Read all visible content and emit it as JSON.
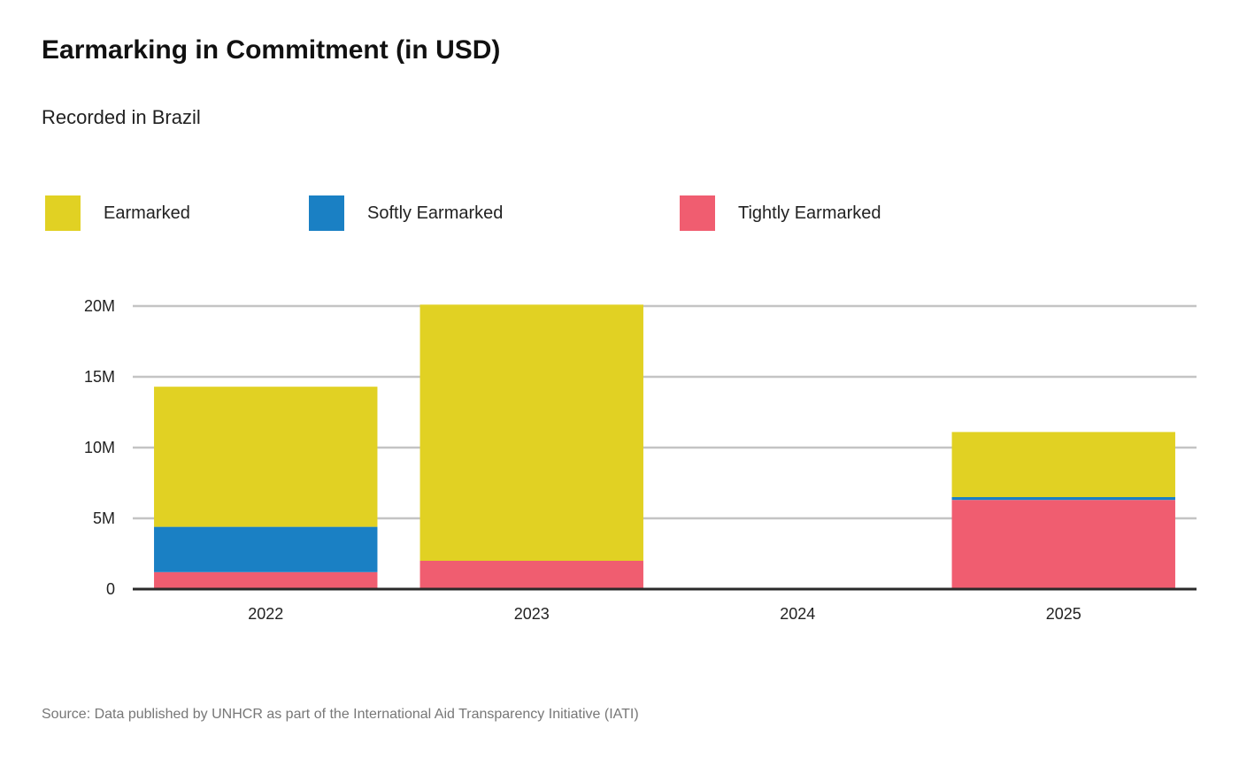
{
  "chart_data": {
    "type": "bar",
    "stacked": true,
    "title": "Earmarking in Commitment (in USD)",
    "subtitle": "Recorded in Brazil",
    "xlabel": "",
    "ylabel": "",
    "categories": [
      "2022",
      "2023",
      "2024",
      "2025"
    ],
    "series": [
      {
        "name": "Tightly Earmarked",
        "color": "#f05d70",
        "values": [
          1.2,
          2.0,
          0,
          6.3
        ]
      },
      {
        "name": "Softly Earmarked",
        "color": "#1a80c4",
        "values": [
          3.2,
          0,
          0,
          0.2
        ]
      },
      {
        "name": "Earmarked",
        "color": "#e1d123",
        "values": [
          9.9,
          18.1,
          0,
          4.6
        ]
      }
    ],
    "units": "M USD",
    "ylim": [
      0,
      20
    ],
    "yticks": [
      0,
      5,
      10,
      15,
      20
    ],
    "ytick_labels": [
      "0",
      "5M",
      "10M",
      "15M",
      "20M"
    ],
    "grid": true,
    "legend_position": "top",
    "legend": [
      {
        "name": "Earmarked",
        "color": "#e1d123"
      },
      {
        "name": "Softly Earmarked",
        "color": "#1a80c4"
      },
      {
        "name": "Tightly Earmarked",
        "color": "#f05d70"
      }
    ],
    "source": "Source: Data published by UNHCR as part of the International  Aid Transparency Initiative (IATI)"
  }
}
